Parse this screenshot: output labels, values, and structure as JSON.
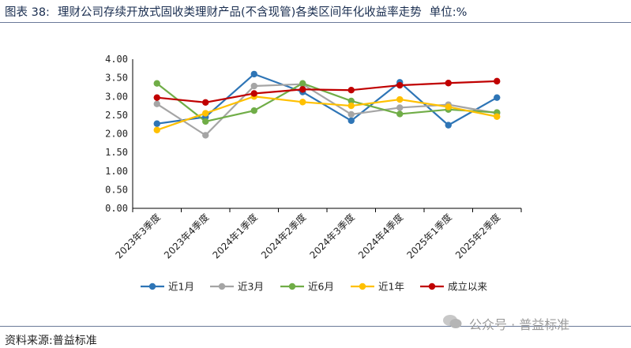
{
  "header": {
    "figure_label": "图表 38:",
    "title": "理财公司存续开放式固收类理财产品(不含现管)各类区间年化收益率走势",
    "unit_label": "单位:%"
  },
  "footer": {
    "source": "资料来源:普益标准",
    "watermark": "公众号 · 普益标准",
    "watermark_icon": "wechat-icon"
  },
  "chart_data": {
    "type": "line",
    "title": "",
    "xlabel": "",
    "ylabel": "",
    "ylim": [
      0,
      4
    ],
    "ytick_step": 0.5,
    "ytick_labels": [
      "0.00",
      "0.50",
      "1.00",
      "1.50",
      "2.00",
      "2.50",
      "3.00",
      "3.50",
      "4.00"
    ],
    "grid": false,
    "legend_position": "bottom",
    "categories": [
      "2023年3季度",
      "2023年4季度",
      "2024年1季度",
      "2024年2季度",
      "2024年3季度",
      "2024年4季度",
      "2025年1季度",
      "2025年2季度"
    ],
    "series": [
      {
        "name": "近1月",
        "color": "#2e75b6",
        "values": [
          2.27,
          2.45,
          3.6,
          3.12,
          2.35,
          3.38,
          2.23,
          2.97
        ]
      },
      {
        "name": "近3月",
        "color": "#a5a5a5",
        "values": [
          2.8,
          1.96,
          3.28,
          3.33,
          2.52,
          2.7,
          2.78,
          2.55
        ]
      },
      {
        "name": "近6月",
        "color": "#70ad47",
        "values": [
          3.35,
          2.33,
          2.62,
          3.35,
          2.88,
          2.53,
          2.65,
          2.57
        ]
      },
      {
        "name": "近1年",
        "color": "#ffc000",
        "values": [
          2.1,
          2.55,
          3.0,
          2.85,
          2.75,
          2.92,
          2.72,
          2.46
        ]
      },
      {
        "name": "成立以来",
        "color": "#c00000",
        "values": [
          2.97,
          2.84,
          3.08,
          3.19,
          3.17,
          3.3,
          3.36,
          3.41
        ]
      }
    ]
  }
}
